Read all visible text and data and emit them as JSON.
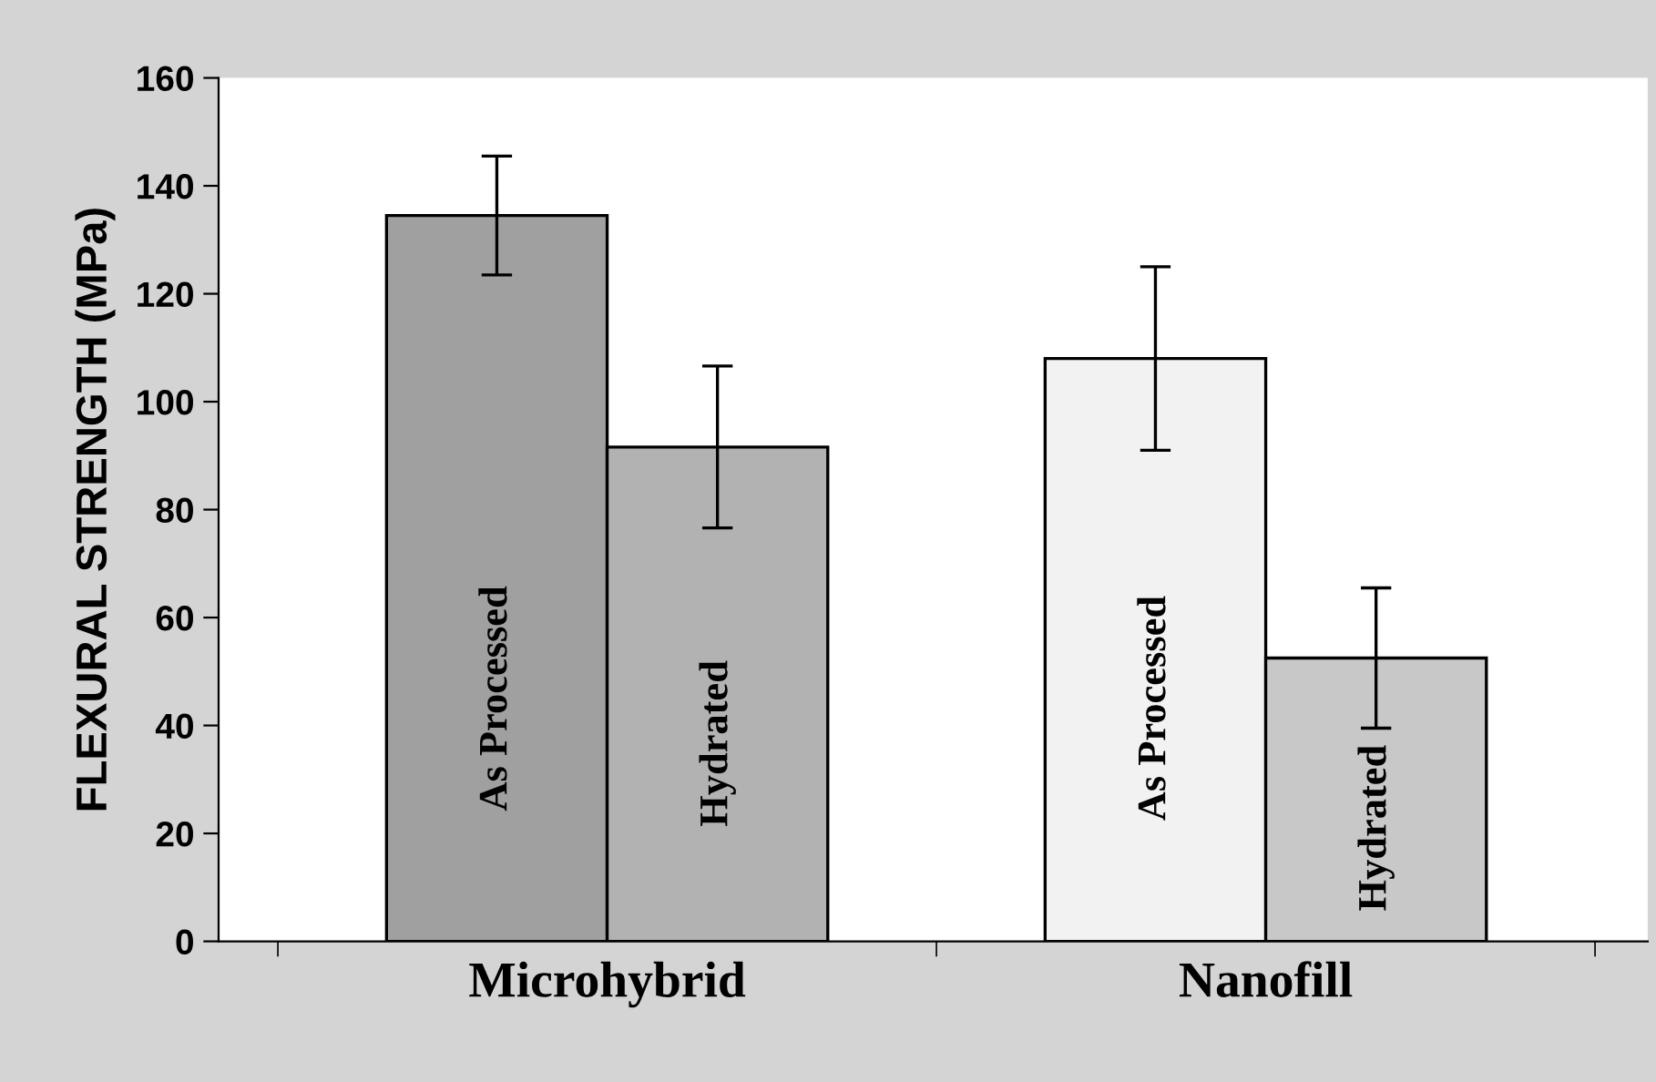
{
  "chart_data": {
    "type": "bar",
    "ylabel": "FLEXURAL STRENGTH (MPa)",
    "categories": [
      "Microhybrid",
      "Nanofill"
    ],
    "series": [
      {
        "name": "As Processed",
        "colors": [
          "#a0a0a0",
          "#f2f2f2"
        ],
        "values": [
          134.5,
          108
        ],
        "errors": [
          11,
          17
        ]
      },
      {
        "name": "Hydrated",
        "colors": [
          "#b2b2b2",
          "#c8c8c8"
        ],
        "values": [
          91.6,
          52.5
        ],
        "errors": [
          15,
          13
        ]
      }
    ],
    "ylim": [
      0,
      160
    ],
    "yticks": [
      0,
      20,
      40,
      60,
      80,
      100,
      120,
      140,
      160
    ],
    "grid": false,
    "legend": false
  }
}
